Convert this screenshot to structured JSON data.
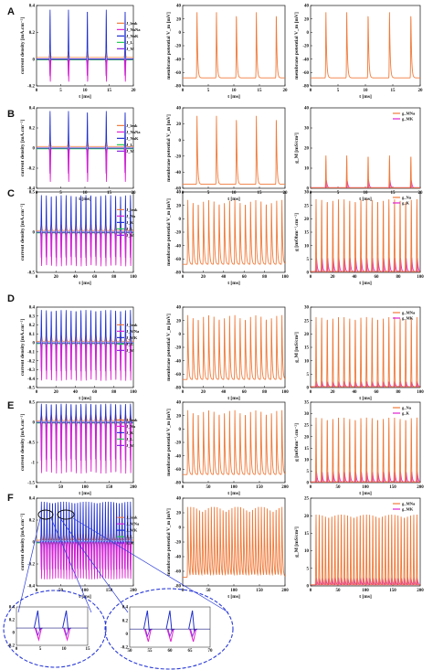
{
  "colors": {
    "orange": "#f07a3a",
    "blue": "#1f2fd0",
    "magenta": "#e020d0",
    "violet": "#8a22e0",
    "green": "#22cc55",
    "navy": "#1a1a80",
    "zoom": "#2a3ad8"
  },
  "chart_data": [
    {
      "row": "A",
      "type": "line",
      "xlabel": "t [ms]",
      "ylabel": "current density [mA.cm⁻²]",
      "xticks": [
        "0",
        "5",
        "10",
        "15",
        "20"
      ],
      "yticks": [
        "0.4",
        "0.2",
        "0",
        "-0.2"
      ],
      "legend": [
        "J_leak",
        "J_NaNa",
        "J_NaK",
        "J_L",
        "J_M"
      ],
      "spikes_ms": [
        2.8,
        6.6,
        10.5,
        14.4,
        18.3
      ],
      "xlim": [
        0,
        20
      ]
    },
    {
      "row": "A",
      "type": "line",
      "xlabel": "t [ms]",
      "ylabel": "membrane potential V_m [mV]",
      "xticks": [
        "0",
        "5",
        "10",
        "15",
        "20"
      ],
      "yticks": [
        "40",
        "20",
        "0",
        "-20",
        "-40",
        "-60",
        "-80"
      ],
      "ylim": [
        -80,
        40
      ],
      "rest_mV": -68,
      "peak_mV": 30,
      "spikes_ms": [
        2.8,
        6.6,
        10.5,
        14.4,
        18.3
      ]
    },
    {
      "row": "A",
      "type": "line",
      "xlabel": "t [ms]",
      "ylabel": "membrane potential V_m [mV]",
      "xticks": [
        "0",
        "5",
        "10",
        "15",
        "20"
      ],
      "yticks": [
        "40",
        "20",
        "0",
        "-20",
        "-40",
        "-60",
        "-80"
      ],
      "ylim": [
        -80,
        40
      ],
      "rest_mV": -68,
      "peak_mV": 30,
      "spikes_ms": [
        2.8,
        6.6,
        10.5,
        14.4,
        18.3
      ]
    },
    {
      "row": "B",
      "type": "line",
      "xlabel": "t [ms]",
      "ylabel": "current density [mA.cm⁻²]",
      "xticks": [
        "0",
        "5",
        "10",
        "15",
        "20"
      ],
      "yticks": [
        "0.4",
        "0.2",
        "0",
        "-0.2",
        "-0.4"
      ],
      "legend": [
        "J_leak",
        "J_NaNa",
        "J_NaK",
        "J_L",
        "J_M"
      ],
      "spikes_ms": [
        2.8,
        6.6,
        10.5,
        14.4,
        18.3
      ]
    },
    {
      "row": "B",
      "type": "line",
      "xlabel": "t [ms]",
      "ylabel": "membrane potential V_m [mV]",
      "xticks": [
        "0",
        "5",
        "10",
        "15",
        "20"
      ],
      "yticks": [
        "40",
        "20",
        "0",
        "-20",
        "-40",
        "-60"
      ],
      "ylim": [
        -60,
        40
      ],
      "rest_mV": -55,
      "peak_mV": 30,
      "spikes_ms": [
        2.8,
        6.6,
        10.5,
        14.4,
        18.3
      ]
    },
    {
      "row": "B",
      "type": "line",
      "xlabel": "t [ms]",
      "ylabel": "g_M [mS/cm²]",
      "xticks": [
        "0",
        "5",
        "10",
        "15",
        "20"
      ],
      "yticks": [
        "40",
        "30",
        "20",
        "10",
        "0"
      ],
      "ylim": [
        0,
        40
      ],
      "legend": [
        "g_MNa",
        "g_MK"
      ],
      "spikes_ms": [
        2.8,
        6.6,
        10.5,
        14.4,
        18.3
      ],
      "peaks": [
        16,
        10
      ]
    },
    {
      "row": "C",
      "type": "line",
      "xlabel": "t [ms]",
      "ylabel": "current density [mA.cm⁻²]",
      "xticks": [
        "0",
        "20",
        "40",
        "60",
        "80",
        "100"
      ],
      "yticks": [
        "0.5",
        "0",
        "-0.5"
      ],
      "legend": [
        "J_leak",
        "J_Na",
        "J_K",
        "J_L",
        "J_M"
      ],
      "n_spikes": 19,
      "xlim": [
        0,
        100
      ]
    },
    {
      "row": "C",
      "type": "line",
      "xlabel": "t [ms]",
      "ylabel": "membrane potential V_m [mV]",
      "xticks": [
        "0",
        "20",
        "40",
        "60",
        "80",
        "100"
      ],
      "yticks": [
        "40",
        "20",
        "0",
        "-20",
        "-40",
        "-60",
        "-80"
      ],
      "ylim": [
        -80,
        40
      ],
      "rest_mV": -68,
      "peak_mV": 28,
      "n_spikes": 19
    },
    {
      "row": "C",
      "type": "line",
      "xlabel": "t [ms]",
      "ylabel": "g [mOhm⁻¹.cm⁻²]",
      "xticks": [
        "0",
        "20",
        "40",
        "60",
        "80",
        "100"
      ],
      "yticks": [
        "30",
        "25",
        "20",
        "15",
        "10",
        "5",
        "0"
      ],
      "ylim": [
        0,
        30
      ],
      "legend": [
        "g_Na",
        "g_K"
      ],
      "n_spikes": 19,
      "peaks": [
        27,
        14
      ]
    },
    {
      "row": "D",
      "type": "line",
      "xlabel": "t [ms]",
      "ylabel": "current density [mA.cm⁻²]",
      "xticks": [
        "0",
        "20",
        "40",
        "60",
        "80",
        "100"
      ],
      "yticks": [
        "0.4",
        "0.3",
        "0.2",
        "0.1",
        "0",
        "-0.1",
        "-0.2",
        "-0.3",
        "-0.4",
        "-0.5"
      ],
      "legend": [
        "J_leak",
        "J_MNa",
        "J_MK",
        "J_L",
        "J_M"
      ],
      "n_spikes": 19
    },
    {
      "row": "D",
      "type": "line",
      "xlabel": "t [ms]",
      "ylabel": "membrane potential V_m [mV]",
      "xticks": [
        "0",
        "20",
        "40",
        "60",
        "80",
        "100"
      ],
      "yticks": [
        "40",
        "20",
        "0",
        "-20",
        "-40",
        "-60",
        "-80"
      ],
      "ylim": [
        -80,
        40
      ],
      "rest_mV": -68,
      "peak_mV": 28,
      "n_spikes": 19
    },
    {
      "row": "D",
      "type": "line",
      "xlabel": "t [ms]",
      "ylabel": "g_M [mS/cm²]",
      "xticks": [
        "0",
        "20",
        "40",
        "60",
        "80",
        "100"
      ],
      "yticks": [
        "30",
        "25",
        "20",
        "15",
        "10",
        "5",
        "0"
      ],
      "ylim": [
        0,
        30
      ],
      "legend": [
        "g_MNa",
        "g_MK"
      ],
      "n_spikes": 19,
      "peaks": [
        26,
        5
      ]
    },
    {
      "row": "E",
      "type": "line",
      "xlabel": "t [ms]",
      "ylabel": "current density [mA.cm⁻²]",
      "xticks": [
        "0",
        "50",
        "100",
        "150",
        "200"
      ],
      "yticks": [
        "0.5",
        "0",
        "-0.5",
        "-1",
        "-1.5"
      ],
      "legend": [
        "J_leak",
        "J_Na",
        "J_K",
        "J_L",
        "J_M"
      ],
      "n_spikes": 19,
      "xlim": [
        0,
        200
      ]
    },
    {
      "row": "E",
      "type": "line",
      "xlabel": "t [ms]",
      "ylabel": "membrane potential V_m [mV]",
      "xticks": [
        "0",
        "50",
        "100",
        "150",
        "200"
      ],
      "yticks": [
        "40",
        "20",
        "0",
        "-20",
        "-40",
        "-60",
        "-80"
      ],
      "ylim": [
        -80,
        40
      ],
      "rest_mV": -68,
      "peak_mV": 28,
      "n_spikes": 19
    },
    {
      "row": "E",
      "type": "line",
      "xlabel": "t [ms]",
      "ylabel": "g [mOhm⁻¹.cm⁻²]",
      "xticks": [
        "0",
        "50",
        "100",
        "150",
        "200"
      ],
      "yticks": [
        "35",
        "30",
        "25",
        "20",
        "15",
        "10",
        "5",
        "0"
      ],
      "ylim": [
        0,
        35
      ],
      "legend": [
        "g_Na",
        "g_K"
      ],
      "n_spikes": 19,
      "peaks": [
        28,
        12
      ]
    },
    {
      "row": "F",
      "type": "line",
      "xlabel": "t [ms]",
      "ylabel": "current density [mA.cm⁻²]",
      "xticks": [
        "0",
        "50",
        "100",
        "150",
        "200"
      ],
      "yticks": [
        "0.4",
        "0.2",
        "0",
        "-0.2",
        "-0.4"
      ],
      "legend": [
        "J_leak",
        "J_MNa",
        "J_MK",
        "J_L",
        "J_M"
      ],
      "n_spikes": 33
    },
    {
      "row": "F",
      "type": "line",
      "xlabel": "t [ms]",
      "ylabel": "membrane potential V_m [mV]",
      "xticks": [
        "0",
        "50",
        "100",
        "150",
        "200"
      ],
      "yticks": [
        "40",
        "20",
        "0",
        "-20",
        "-40",
        "-60",
        "-80"
      ],
      "ylim": [
        -80,
        40
      ],
      "rest_mV": -68,
      "peak_mV": 28,
      "n_spikes": 33
    },
    {
      "row": "F",
      "type": "line",
      "xlabel": "t [ms]",
      "ylabel": "g_M [mS/cm²]",
      "xticks": [
        "0",
        "50",
        "100",
        "150",
        "200"
      ],
      "yticks": [
        "25",
        "20",
        "15",
        "10",
        "5",
        "0"
      ],
      "ylim": [
        0,
        25
      ],
      "legend": [
        "g_MNa",
        "g_MK"
      ],
      "n_spikes": 33,
      "peaks": [
        20,
        5
      ]
    }
  ],
  "insets": [
    {
      "xticks": [
        "0",
        "5",
        "10",
        "15"
      ],
      "yticks": [
        "0.4",
        "0.2",
        "0",
        "-0.2"
      ]
    },
    {
      "xticks": [
        "50",
        "55",
        "60",
        "65",
        "70"
      ],
      "yticks": [
        "0.4",
        "0.2",
        "0",
        "-0.2"
      ]
    }
  ]
}
